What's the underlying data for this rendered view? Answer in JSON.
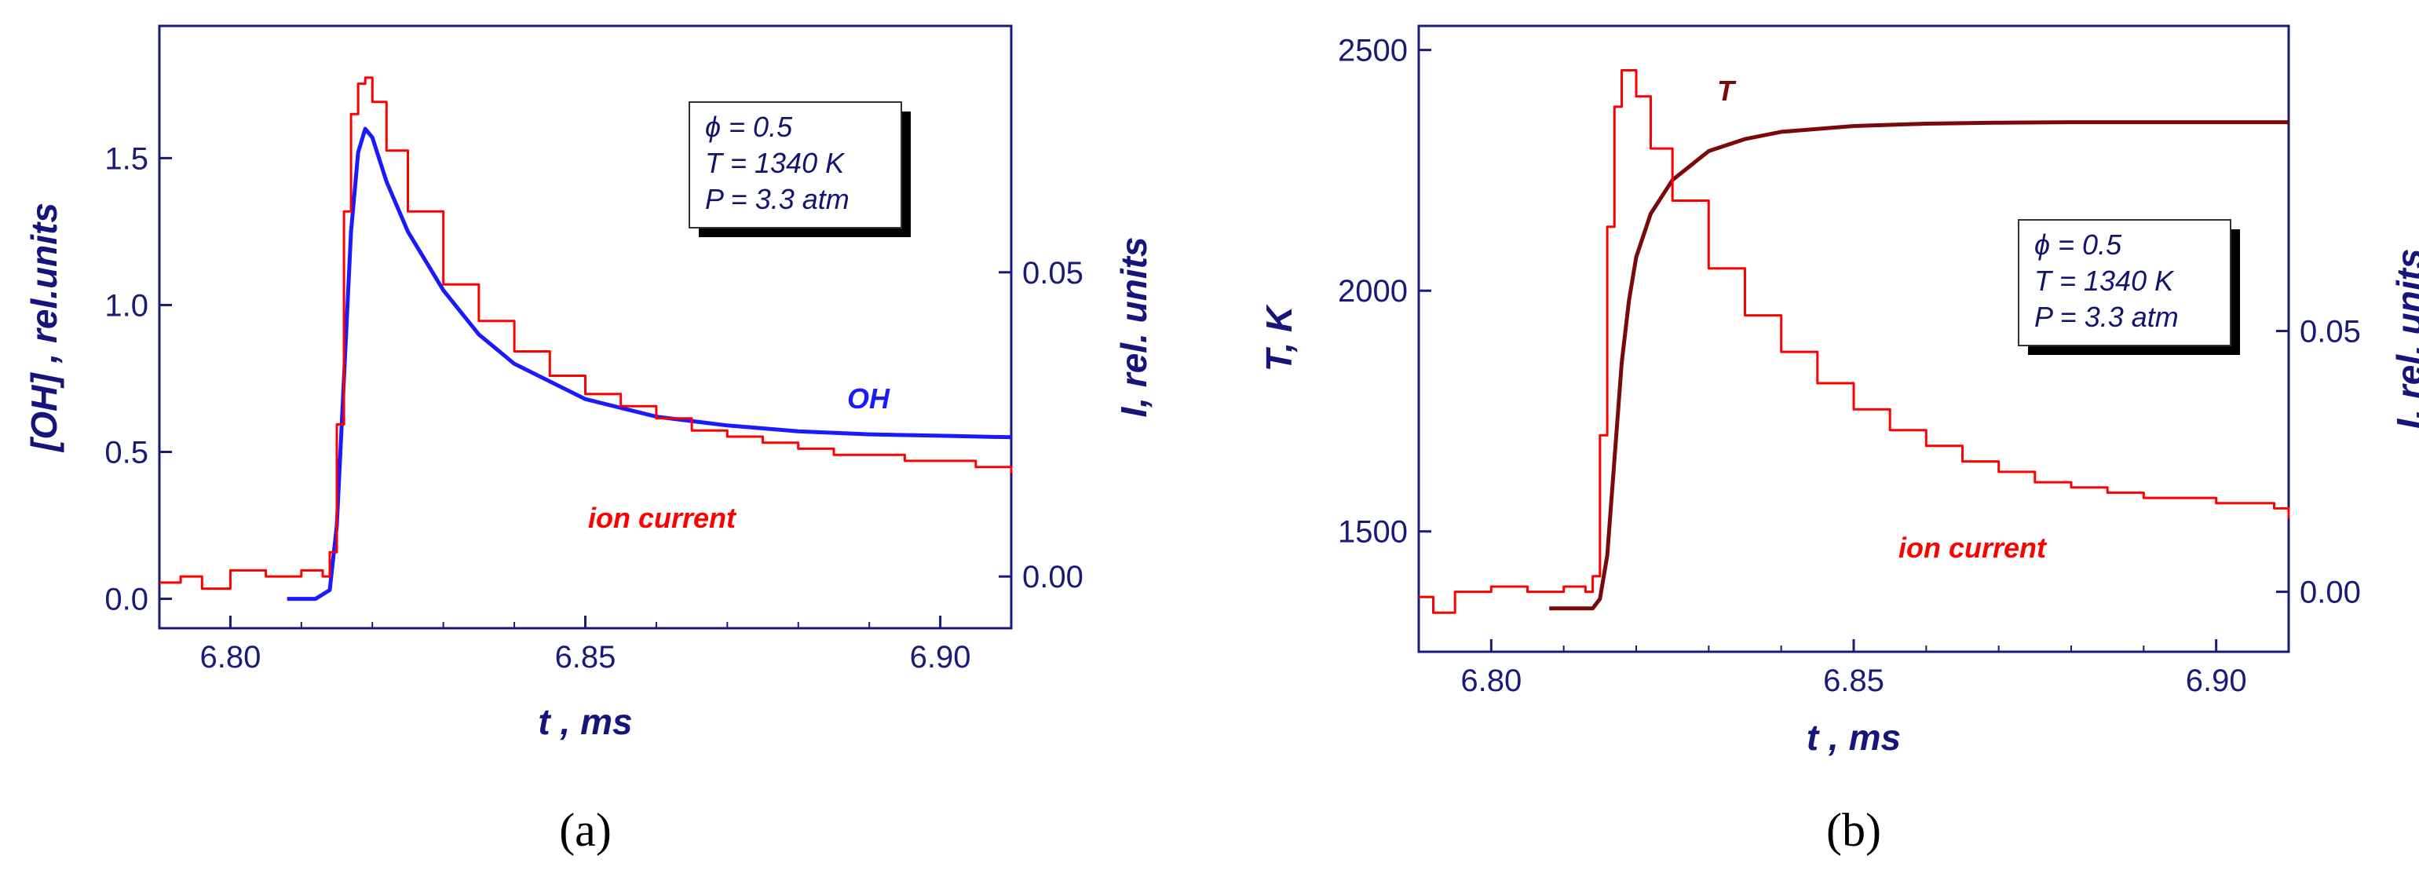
{
  "colors": {
    "axis": "#1a1a7a",
    "ion_current": "#ff0000",
    "OH": "#1a1aff",
    "T": "#7a0a0a"
  },
  "chart_data": [
    {
      "type": "line",
      "panel_label": "(a)",
      "xlabel": "t , ms",
      "ylabel": "[OH] , rel.units",
      "y2label": "I,  rel. units",
      "xlim": [
        6.79,
        6.91
      ],
      "ylim": [
        -0.1,
        1.95
      ],
      "y2lim": [
        -0.0085,
        0.0905
      ],
      "xticks": [
        "6.80",
        "6.85",
        "6.90"
      ],
      "yticks": [
        "0.0",
        "0.5",
        "1.0",
        "1.5"
      ],
      "y2ticks": [
        "0.00",
        "0.05"
      ],
      "grid": false,
      "conditions": [
        "ϕ = 0.5",
        "T = 1340 K",
        "P = 3.3 atm"
      ],
      "series": [
        {
          "name": "OH",
          "axis": "left",
          "x": [
            6.808,
            6.812,
            6.814,
            6.815,
            6.816,
            6.817,
            6.818,
            6.819,
            6.82,
            6.822,
            6.825,
            6.83,
            6.835,
            6.84,
            6.85,
            6.86,
            6.87,
            6.88,
            6.89,
            6.9,
            6.91
          ],
          "y": [
            0.0,
            0.0,
            0.03,
            0.25,
            0.75,
            1.25,
            1.52,
            1.6,
            1.57,
            1.42,
            1.25,
            1.05,
            0.9,
            0.8,
            0.68,
            0.62,
            0.59,
            0.57,
            0.56,
            0.555,
            0.55
          ]
        },
        {
          "name": "ion current",
          "axis": "right",
          "x": [
            6.79,
            6.793,
            6.796,
            6.8,
            6.805,
            6.81,
            6.813,
            6.814,
            6.815,
            6.816,
            6.817,
            6.818,
            6.819,
            6.82,
            6.822,
            6.825,
            6.83,
            6.835,
            6.84,
            6.845,
            6.85,
            6.855,
            6.86,
            6.865,
            6.87,
            6.875,
            6.88,
            6.885,
            6.89,
            6.895,
            6.9,
            6.905,
            6.908,
            6.91
          ],
          "y": [
            -0.001,
            0.0,
            -0.002,
            0.001,
            0.0,
            0.001,
            0.0,
            0.004,
            0.025,
            0.06,
            0.076,
            0.081,
            0.082,
            0.078,
            0.07,
            0.06,
            0.048,
            0.042,
            0.037,
            0.033,
            0.03,
            0.028,
            0.026,
            0.024,
            0.023,
            0.022,
            0.021,
            0.02,
            0.02,
            0.019,
            0.019,
            0.018,
            0.018,
            0.017
          ]
        }
      ]
    },
    {
      "type": "line",
      "panel_label": "(b)",
      "xlabel": "t , ms",
      "ylabel": "T,  K",
      "y2label": "I,  rel. units",
      "xlim": [
        6.79,
        6.91
      ],
      "ylim": [
        1250,
        2550
      ],
      "y2lim": [
        -0.0115,
        0.1085
      ],
      "xticks": [
        "6.80",
        "6.85",
        "6.90"
      ],
      "yticks": [
        "1500",
        "2000",
        "2500"
      ],
      "y2ticks": [
        "0.00",
        "0.05"
      ],
      "grid": false,
      "conditions": [
        "ϕ = 0.5",
        "T = 1340 K",
        "P = 3.3 atm"
      ],
      "series": [
        {
          "name": "T",
          "axis": "left",
          "x": [
            6.808,
            6.814,
            6.815,
            6.816,
            6.817,
            6.818,
            6.819,
            6.82,
            6.822,
            6.825,
            6.83,
            6.835,
            6.84,
            6.85,
            6.86,
            6.87,
            6.88,
            6.89,
            6.9,
            6.91
          ],
          "y": [
            1340,
            1340,
            1360,
            1450,
            1650,
            1850,
            1980,
            2070,
            2160,
            2230,
            2290,
            2315,
            2330,
            2342,
            2347,
            2349,
            2350,
            2350,
            2350,
            2350
          ]
        },
        {
          "name": "ion current",
          "axis": "right",
          "x": [
            6.79,
            6.792,
            6.795,
            6.8,
            6.805,
            6.81,
            6.813,
            6.814,
            6.815,
            6.816,
            6.817,
            6.818,
            6.819,
            6.82,
            6.822,
            6.825,
            6.83,
            6.835,
            6.84,
            6.845,
            6.85,
            6.855,
            6.86,
            6.865,
            6.87,
            6.875,
            6.88,
            6.885,
            6.89,
            6.895,
            6.9,
            6.905,
            6.908,
            6.91
          ],
          "y": [
            -0.001,
            -0.004,
            0.0,
            0.001,
            0.0,
            0.001,
            0.0,
            0.003,
            0.03,
            0.07,
            0.093,
            0.1,
            0.1,
            0.095,
            0.085,
            0.075,
            0.062,
            0.053,
            0.046,
            0.04,
            0.035,
            0.031,
            0.028,
            0.025,
            0.023,
            0.021,
            0.02,
            0.019,
            0.018,
            0.018,
            0.017,
            0.017,
            0.016,
            0.014
          ]
        }
      ]
    }
  ]
}
